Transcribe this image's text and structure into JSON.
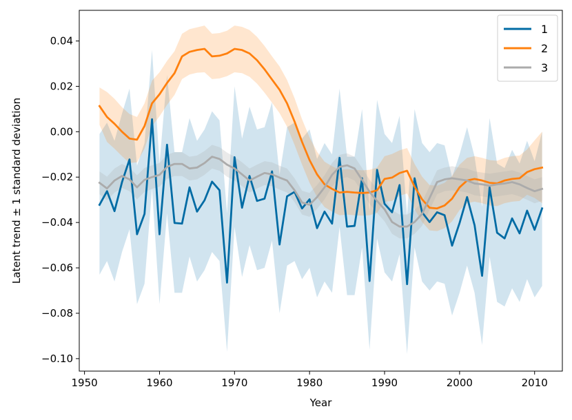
{
  "chart_data": {
    "type": "line",
    "title": "",
    "xlabel": "Year",
    "ylabel": "Latent trend ± 1 standard deviation",
    "xlim": [
      1949.3,
      2013.7
    ],
    "ylim": [
      -0.1055,
      0.0535
    ],
    "xticks": [
      1950,
      1960,
      1970,
      1980,
      1990,
      2000,
      2010
    ],
    "xtick_labels": [
      "1950",
      "1960",
      "1970",
      "1980",
      "1990",
      "2000",
      "2010"
    ],
    "yticks": [
      0.04,
      0.02,
      0.0,
      -0.02,
      -0.04,
      -0.06,
      -0.08,
      -0.1
    ],
    "ytick_labels": [
      "0.04",
      "0.02",
      "0.00",
      "−0.02",
      "−0.04",
      "−0.06",
      "−0.08",
      "−0.10"
    ],
    "grid": false,
    "legend_position": "top-right",
    "x": [
      1952,
      1953,
      1954,
      1955,
      1956,
      1957,
      1958,
      1959,
      1960,
      1961,
      1962,
      1963,
      1964,
      1965,
      1966,
      1967,
      1968,
      1969,
      1970,
      1971,
      1972,
      1973,
      1974,
      1975,
      1976,
      1977,
      1978,
      1979,
      1980,
      1981,
      1982,
      1983,
      1984,
      1985,
      1986,
      1987,
      1988,
      1989,
      1990,
      1991,
      1992,
      1993,
      1994,
      1995,
      1996,
      1997,
      1998,
      1999,
      2000,
      2001,
      2002,
      2003,
      2004,
      2005,
      2006,
      2007,
      2008,
      2009,
      2010,
      2011
    ],
    "series": [
      {
        "name": "1",
        "color": "#006ba4",
        "band_color": "#006ba4",
        "band_opacity": 0.18,
        "values": [
          -0.0322,
          -0.0262,
          -0.035,
          -0.0222,
          -0.0122,
          -0.0452,
          -0.0362,
          0.0055,
          -0.0452,
          -0.0057,
          -0.0402,
          -0.0405,
          -0.0245,
          -0.0352,
          -0.0302,
          -0.022,
          -0.0258,
          -0.0665,
          -0.0112,
          -0.0335,
          -0.0195,
          -0.0305,
          -0.0295,
          -0.0175,
          -0.0497,
          -0.0285,
          -0.0265,
          -0.0338,
          -0.0298,
          -0.0425,
          -0.0352,
          -0.0405,
          -0.0115,
          -0.0418,
          -0.0415,
          -0.0205,
          -0.0658,
          -0.0168,
          -0.0318,
          -0.0355,
          -0.0235,
          -0.0672,
          -0.0205,
          -0.0355,
          -0.0398,
          -0.0355,
          -0.0368,
          -0.0502,
          -0.0402,
          -0.0288,
          -0.0412,
          -0.0635,
          -0.0245,
          -0.0445,
          -0.047,
          -0.0382,
          -0.0448,
          -0.0348,
          -0.0432,
          -0.0338
        ],
        "upper": [
          -0.001,
          0.004,
          -0.004,
          0.008,
          0.019,
          -0.015,
          -0.005,
          0.036,
          -0.014,
          0.025,
          -0.009,
          -0.009,
          0.006,
          -0.004,
          0.001,
          0.009,
          0.005,
          -0.036,
          0.02,
          -0.003,
          0.011,
          0.001,
          0.002,
          0.013,
          -0.019,
          0.002,
          0.004,
          -0.003,
          0.001,
          -0.012,
          -0.005,
          -0.01,
          0.019,
          -0.011,
          -0.011,
          0.01,
          -0.035,
          0.014,
          -0.001,
          -0.005,
          0.007,
          -0.037,
          0.01,
          -0.005,
          -0.009,
          -0.005,
          -0.006,
          -0.02,
          -0.01,
          0.002,
          -0.011,
          -0.033,
          0.006,
          -0.014,
          -0.016,
          -0.008,
          -0.014,
          -0.004,
          -0.013,
          0.0
        ],
        "lower": [
          -0.063,
          -0.057,
          -0.066,
          -0.053,
          -0.043,
          -0.076,
          -0.067,
          -0.025,
          -0.076,
          -0.036,
          -0.071,
          -0.071,
          -0.055,
          -0.066,
          -0.061,
          -0.053,
          -0.057,
          -0.097,
          -0.042,
          -0.064,
          -0.05,
          -0.061,
          -0.06,
          -0.048,
          -0.08,
          -0.059,
          -0.057,
          -0.065,
          -0.06,
          -0.073,
          -0.066,
          -0.071,
          -0.042,
          -0.072,
          -0.072,
          -0.051,
          -0.096,
          -0.047,
          -0.062,
          -0.066,
          -0.054,
          -0.098,
          -0.051,
          -0.066,
          -0.07,
          -0.066,
          -0.067,
          -0.081,
          -0.071,
          -0.059,
          -0.071,
          -0.094,
          -0.055,
          -0.075,
          -0.077,
          -0.069,
          -0.075,
          -0.065,
          -0.073,
          -0.068
        ]
      },
      {
        "name": "2",
        "color": "#ff800e",
        "band_color": "#ff800e",
        "band_opacity": 0.2,
        "values": [
          0.0113,
          0.0065,
          0.0035,
          0.0,
          -0.003,
          -0.0035,
          0.0025,
          0.0125,
          0.0165,
          0.0215,
          0.0258,
          0.0332,
          0.0352,
          0.036,
          0.0365,
          0.0332,
          0.0335,
          0.0345,
          0.0365,
          0.036,
          0.0345,
          0.0315,
          0.0275,
          0.023,
          0.0185,
          0.0125,
          0.0045,
          -0.0045,
          -0.0125,
          -0.0188,
          -0.0232,
          -0.0252,
          -0.0268,
          -0.0265,
          -0.0268,
          -0.027,
          -0.0268,
          -0.0258,
          -0.0208,
          -0.0202,
          -0.0182,
          -0.0172,
          -0.0242,
          -0.0298,
          -0.0335,
          -0.0338,
          -0.0325,
          -0.0295,
          -0.0245,
          -0.0215,
          -0.0208,
          -0.0215,
          -0.0225,
          -0.0228,
          -0.0215,
          -0.0208,
          -0.0205,
          -0.0178,
          -0.0165,
          -0.0158
        ],
        "upper": [
          0.0195,
          0.0175,
          0.0145,
          0.0108,
          0.0078,
          0.0065,
          0.0125,
          0.0225,
          0.0262,
          0.0312,
          0.0355,
          0.0432,
          0.0452,
          0.046,
          0.0468,
          0.0432,
          0.0435,
          0.0445,
          0.0468,
          0.0462,
          0.0448,
          0.0418,
          0.0378,
          0.0332,
          0.0288,
          0.0228,
          0.0148,
          0.0055,
          -0.0025,
          -0.0088,
          -0.0132,
          -0.0152,
          -0.0168,
          -0.0165,
          -0.0168,
          -0.017,
          -0.0168,
          -0.0158,
          -0.0108,
          -0.0098,
          -0.0082,
          -0.0072,
          -0.0142,
          -0.0198,
          -0.0235,
          -0.0238,
          -0.0225,
          -0.0195,
          -0.0145,
          -0.0115,
          -0.0108,
          -0.0115,
          -0.0125,
          -0.0128,
          -0.0115,
          -0.0108,
          -0.0105,
          -0.0078,
          -0.0038,
          0.0
        ],
        "lower": [
          0.003,
          -0.0045,
          -0.0075,
          -0.0108,
          -0.0138,
          -0.0135,
          -0.0075,
          0.0025,
          0.0068,
          0.0118,
          0.0162,
          0.0232,
          0.0252,
          0.026,
          0.0262,
          0.0232,
          0.0235,
          0.0245,
          0.0262,
          0.0258,
          0.0242,
          0.0212,
          0.0172,
          0.0128,
          0.0082,
          0.0022,
          -0.0058,
          -0.0145,
          -0.0225,
          -0.0288,
          -0.0332,
          -0.0352,
          -0.0368,
          -0.0365,
          -0.0368,
          -0.037,
          -0.0368,
          -0.0358,
          -0.0308,
          -0.0305,
          -0.0282,
          -0.0272,
          -0.0342,
          -0.0398,
          -0.0435,
          -0.0438,
          -0.0425,
          -0.0395,
          -0.0345,
          -0.0315,
          -0.0308,
          -0.0315,
          -0.0325,
          -0.0328,
          -0.0315,
          -0.0308,
          -0.0305,
          -0.0278,
          -0.0292,
          -0.0315
        ]
      },
      {
        "name": "3",
        "color": "#ababab",
        "band_color": "#ababab",
        "band_opacity": 0.25,
        "values": [
          -0.0225,
          -0.025,
          -0.0215,
          -0.0195,
          -0.021,
          -0.0245,
          -0.0212,
          -0.02,
          -0.019,
          -0.0155,
          -0.0142,
          -0.0142,
          -0.0162,
          -0.0158,
          -0.0138,
          -0.011,
          -0.012,
          -0.0145,
          -0.0162,
          -0.0188,
          -0.0215,
          -0.0198,
          -0.0182,
          -0.0188,
          -0.0202,
          -0.0215,
          -0.0258,
          -0.0312,
          -0.0322,
          -0.0288,
          -0.0245,
          -0.019,
          -0.0155,
          -0.0148,
          -0.0162,
          -0.0212,
          -0.0265,
          -0.0305,
          -0.0342,
          -0.0398,
          -0.0418,
          -0.0418,
          -0.0398,
          -0.0362,
          -0.0292,
          -0.0222,
          -0.021,
          -0.0205,
          -0.021,
          -0.0215,
          -0.0228,
          -0.0232,
          -0.0238,
          -0.0232,
          -0.0228,
          -0.0222,
          -0.0232,
          -0.0248,
          -0.0262,
          -0.0252
        ],
        "upper": [
          -0.0175,
          -0.0198,
          -0.0162,
          -0.0142,
          -0.0158,
          -0.0192,
          -0.016,
          -0.0148,
          -0.0138,
          -0.0102,
          -0.009,
          -0.009,
          -0.011,
          -0.0105,
          -0.0085,
          -0.0058,
          -0.0068,
          -0.0092,
          -0.011,
          -0.0135,
          -0.0162,
          -0.0145,
          -0.013,
          -0.0135,
          -0.015,
          -0.0162,
          -0.0205,
          -0.026,
          -0.027,
          -0.0235,
          -0.0192,
          -0.0138,
          -0.0102,
          -0.0095,
          -0.011,
          -0.016,
          -0.0212,
          -0.0252,
          -0.029,
          -0.0345,
          -0.0365,
          -0.0365,
          -0.0345,
          -0.031,
          -0.024,
          -0.017,
          -0.0158,
          -0.0152,
          -0.0158,
          -0.0162,
          -0.0175,
          -0.018,
          -0.0185,
          -0.018,
          -0.0175,
          -0.017,
          -0.018,
          -0.0195,
          -0.021,
          -0.02
        ],
        "lower": [
          -0.0275,
          -0.0302,
          -0.0268,
          -0.0248,
          -0.0262,
          -0.0298,
          -0.0265,
          -0.0252,
          -0.0242,
          -0.0208,
          -0.0195,
          -0.0195,
          -0.0215,
          -0.021,
          -0.019,
          -0.0162,
          -0.0172,
          -0.0198,
          -0.0215,
          -0.024,
          -0.0268,
          -0.025,
          -0.0235,
          -0.024,
          -0.0255,
          -0.0268,
          -0.031,
          -0.0365,
          -0.0375,
          -0.034,
          -0.0298,
          -0.0242,
          -0.0208,
          -0.02,
          -0.0215,
          -0.0265,
          -0.0318,
          -0.0358,
          -0.0395,
          -0.045,
          -0.047,
          -0.047,
          -0.045,
          -0.0415,
          -0.0345,
          -0.0275,
          -0.0262,
          -0.0258,
          -0.0262,
          -0.0268,
          -0.028,
          -0.0285,
          -0.029,
          -0.0285,
          -0.028,
          -0.0275,
          -0.0285,
          -0.03,
          -0.0315,
          -0.0305
        ]
      }
    ]
  }
}
